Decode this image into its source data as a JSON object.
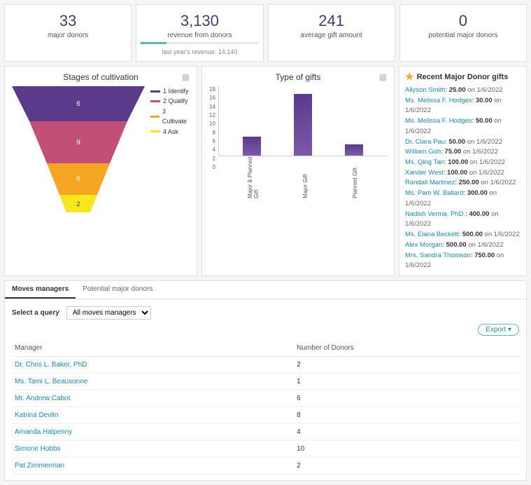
{
  "metrics": [
    {
      "value": "33",
      "label": "major donors"
    },
    {
      "value": "3,130",
      "label": "revenue from donors",
      "sub": "last year's revenue: 14,140",
      "progress_pct": 22,
      "progress_color": "#5cb9a8"
    },
    {
      "value": "241",
      "label": "average gift amount"
    },
    {
      "value": "0",
      "label": "potential major donors"
    }
  ],
  "funnel": {
    "title": "Stages of cultivation",
    "stages": [
      {
        "label": "6",
        "color": "#5b3a8c"
      },
      {
        "label": "9",
        "color": "#c14f78"
      },
      {
        "label": "6",
        "color": "#f5a623"
      },
      {
        "label": "2",
        "color": "#f8e71c"
      }
    ],
    "legend": [
      {
        "color": "#5b3a8c",
        "text": "1 Identify"
      },
      {
        "color": "#c14f78",
        "text": "2 Qualify"
      },
      {
        "color": "#f5a623",
        "text": "3 Cultivate"
      },
      {
        "color": "#f8e71c",
        "text": "4 Ask"
      }
    ]
  },
  "bar_chart": {
    "title": "Type of gifts",
    "y_ticks": [
      "18",
      "16",
      "14",
      "12",
      "10",
      "8",
      "6",
      "4",
      "2",
      "0"
    ],
    "y_max": 18,
    "bars": [
      {
        "label": "Major & Planned Gift",
        "value": 5
      },
      {
        "label": "Major Gift",
        "value": 16
      },
      {
        "label": "Planned Gift",
        "value": 3
      }
    ],
    "bar_color_top": "#5b3a8c",
    "bar_color_bottom": "#7d5aa8"
  },
  "recent": {
    "title": "Recent Major Donor gifts",
    "items": [
      {
        "donor": "Allyson Smith",
        "amount": "25.00",
        "date": "1/6/2022"
      },
      {
        "donor": "Ms. Melissa F. Hodges",
        "amount": "30.00",
        "date": "1/6/2022"
      },
      {
        "donor": "Ms. Melissa F. Hodges",
        "amount": "50.00",
        "date": "1/6/2022"
      },
      {
        "donor": "Dr. Clara Pau",
        "amount": "50.00",
        "date": "1/6/2022"
      },
      {
        "donor": "William Goh",
        "amount": "75.00",
        "date": "1/6/2022"
      },
      {
        "donor": "Ms. Qing Tan",
        "amount": "100.00",
        "date": "1/6/2022"
      },
      {
        "donor": "Xander West",
        "amount": "100.00",
        "date": "1/6/2022"
      },
      {
        "donor": "Randall Martinez",
        "amount": "250.00",
        "date": "1/6/2022"
      },
      {
        "donor": "Ms. Pam W. Ballard",
        "amount": "300.00",
        "date": "1/6/2022"
      },
      {
        "donor": "Nadish Verma, PhD.",
        "amount": "400.00",
        "date": "1/6/2022"
      },
      {
        "donor": "Ms. Elana Beckett",
        "amount": "500.00",
        "date": "1/6/2022"
      },
      {
        "donor": "Alex Morgan",
        "amount": "500.00",
        "date": "1/6/2022"
      },
      {
        "donor": "Mrs. Sandra Thomson",
        "amount": "750.00",
        "date": "1/6/2022"
      }
    ]
  },
  "tabs": {
    "active": "Moves managers",
    "inactive": "Potential major donors"
  },
  "query": {
    "label": "Select a query",
    "selected": "All moves managers"
  },
  "export_label": "Export",
  "table": {
    "columns": [
      "Manager",
      "Number of Donors"
    ],
    "rows": [
      [
        "Dr. Chris L. Baker, PhD",
        "2"
      ],
      [
        "Ms. Tami L. Beausonne",
        "1"
      ],
      [
        "Mr. Andrew Cabot",
        "6"
      ],
      [
        "Katrina Devlin",
        "8"
      ],
      [
        "Amanda Halpenny",
        "4"
      ],
      [
        "Simone Hobbs",
        "10"
      ],
      [
        "Pat Zimmerman",
        "2"
      ]
    ]
  },
  "on_text": " on "
}
